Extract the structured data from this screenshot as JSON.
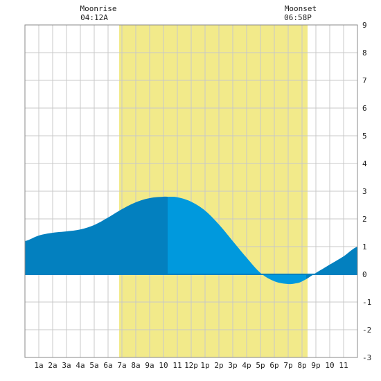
{
  "moon": {
    "rise_label": "Moonrise",
    "rise_time": "04:12A",
    "set_label": "Moonset",
    "set_time": "06:58P"
  },
  "chart_data": {
    "type": "area",
    "x_tick_labels": [
      "1a",
      "2a",
      "3a",
      "4a",
      "5a",
      "6a",
      "7a",
      "8a",
      "9a",
      "10",
      "11",
      "12p",
      "1p",
      "2p",
      "3p",
      "4p",
      "5p",
      "6p",
      "7p",
      "8p",
      "9p",
      "10",
      "11"
    ],
    "y_tick_labels": [
      "9",
      "8",
      "7",
      "6",
      "5",
      "4",
      "3",
      "2",
      "1",
      "0",
      "-1",
      "-2",
      "-3"
    ],
    "xlim": [
      0,
      24
    ],
    "ylim": [
      -3,
      9
    ],
    "grid": true,
    "daylight_band": {
      "start_hour": 6.8,
      "end_hour": 20.4,
      "color": "#f2ea8a"
    },
    "colors": {
      "tide_dark": "#0380bf",
      "tide_light": "#0099dd",
      "grid": "#c8c8c8"
    },
    "light_interval": [
      10.3,
      20.3
    ],
    "tide": {
      "hours": [
        0,
        1,
        2,
        3,
        4,
        5,
        6,
        7,
        8,
        9,
        10,
        10.3,
        11,
        12,
        13,
        14,
        15,
        16,
        17,
        18,
        19,
        19.5,
        20,
        21,
        22,
        23,
        24
      ],
      "values": [
        1.2,
        1.4,
        1.5,
        1.55,
        1.62,
        1.78,
        2.05,
        2.35,
        2.6,
        2.75,
        2.8,
        2.8,
        2.78,
        2.62,
        2.3,
        1.8,
        1.2,
        0.6,
        0.05,
        -0.25,
        -0.35,
        -0.33,
        -0.25,
        0.05,
        0.35,
        0.65,
        1.0
      ]
    }
  }
}
